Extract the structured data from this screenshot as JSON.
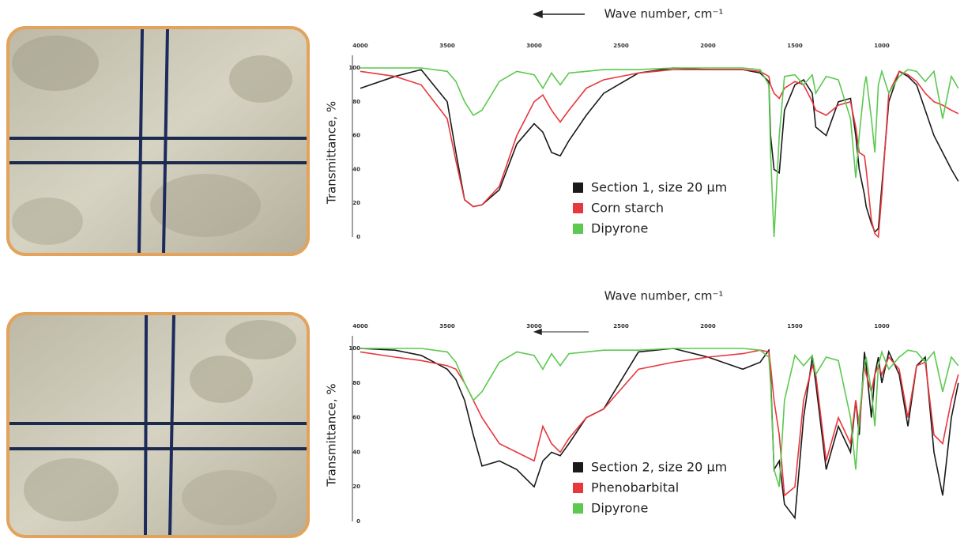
{
  "chart_data": [
    {
      "type": "line",
      "xlabel": "Wave number, cm⁻¹",
      "ylabel": "Transmittance, %",
      "x": [
        4000,
        3800,
        3650,
        3500,
        3450,
        3400,
        3350,
        3300,
        3200,
        3100,
        3000,
        2950,
        2900,
        2850,
        2800,
        2700,
        2600,
        2400,
        2200,
        2000,
        1800,
        1700,
        1650,
        1640,
        1620,
        1590,
        1560,
        1500,
        1450,
        1400,
        1380,
        1320,
        1250,
        1180,
        1150,
        1130,
        1100,
        1090,
        1060,
        1040,
        1020,
        1000,
        960,
        900,
        850,
        800,
        750,
        700,
        650,
        600,
        560
      ],
      "xlim": [
        4050,
        550
      ],
      "xticks": [
        4000,
        3500,
        3000,
        2500,
        2000,
        1500,
        1000
      ],
      "ylim": [
        0,
        100
      ],
      "yticks": [
        0,
        20,
        40,
        60,
        80,
        100
      ],
      "grid": false,
      "series": [
        {
          "name": "Section 1, size 20 µm",
          "color": "#1a1a1a",
          "values": [
            88,
            95,
            99,
            80,
            50,
            22,
            18,
            19,
            28,
            55,
            67,
            62,
            50,
            48,
            57,
            72,
            85,
            97,
            100,
            99,
            99,
            97,
            92,
            60,
            40,
            38,
            75,
            90,
            93,
            85,
            65,
            60,
            80,
            82,
            60,
            40,
            25,
            18,
            8,
            3,
            5,
            30,
            80,
            98,
            95,
            90,
            75,
            60,
            50,
            40,
            33
          ]
        },
        {
          "name": "Corn starch",
          "color": "#e8373d",
          "values": [
            98,
            95,
            90,
            70,
            45,
            22,
            18,
            19,
            30,
            60,
            80,
            84,
            75,
            68,
            75,
            88,
            93,
            97,
            99,
            99,
            99,
            98,
            95,
            90,
            85,
            82,
            88,
            92,
            90,
            80,
            75,
            72,
            78,
            80,
            65,
            50,
            48,
            40,
            10,
            2,
            0,
            25,
            85,
            98,
            96,
            92,
            85,
            80,
            78,
            75,
            73
          ]
        },
        {
          "name": "Dipyrone",
          "color": "#5cc94f",
          "values": [
            100,
            100,
            100,
            98,
            92,
            80,
            72,
            75,
            92,
            98,
            96,
            88,
            97,
            90,
            97,
            98,
            99,
            99,
            100,
            100,
            100,
            99,
            90,
            50,
            0,
            60,
            95,
            96,
            90,
            96,
            85,
            95,
            93,
            70,
            35,
            60,
            90,
            95,
            70,
            50,
            90,
            98,
            85,
            95,
            99,
            98,
            92,
            98,
            70,
            95,
            88
          ]
        }
      ]
    },
    {
      "type": "line",
      "xlabel": "Wave number, cm⁻¹",
      "ylabel": "Transmittance, %",
      "x": [
        4000,
        3800,
        3650,
        3500,
        3450,
        3400,
        3350,
        3300,
        3200,
        3100,
        3000,
        2950,
        2900,
        2850,
        2800,
        2700,
        2600,
        2400,
        2200,
        2000,
        1800,
        1700,
        1650,
        1640,
        1620,
        1590,
        1560,
        1500,
        1450,
        1400,
        1380,
        1320,
        1250,
        1180,
        1150,
        1130,
        1100,
        1090,
        1060,
        1040,
        1020,
        1000,
        960,
        900,
        850,
        800,
        750,
        700,
        650,
        600,
        560
      ],
      "xlim": [
        4050,
        550
      ],
      "xticks": [
        4000,
        3500,
        3000,
        2500,
        2000,
        1500,
        1000
      ],
      "ylim": [
        0,
        100
      ],
      "yticks": [
        0,
        20,
        40,
        60,
        80,
        100
      ],
      "grid": false,
      "series": [
        {
          "name": "Section 2, size 20 µm",
          "color": "#1a1a1a",
          "values": [
            100,
            99,
            96,
            88,
            82,
            70,
            50,
            32,
            35,
            30,
            20,
            35,
            40,
            38,
            45,
            60,
            65,
            98,
            100,
            95,
            88,
            92,
            99,
            85,
            30,
            35,
            10,
            2,
            60,
            95,
            80,
            30,
            55,
            40,
            70,
            50,
            98,
            90,
            60,
            85,
            95,
            80,
            98,
            85,
            55,
            90,
            95,
            40,
            15,
            60,
            80
          ]
        },
        {
          "name": "Phenobarbital",
          "color": "#e8373d",
          "values": [
            98,
            95,
            93,
            90,
            88,
            80,
            70,
            60,
            45,
            40,
            35,
            55,
            45,
            40,
            48,
            60,
            65,
            88,
            92,
            95,
            97,
            99,
            98,
            90,
            70,
            50,
            15,
            20,
            70,
            90,
            85,
            35,
            60,
            45,
            70,
            55,
            90,
            85,
            75,
            85,
            90,
            85,
            95,
            88,
            60,
            90,
            92,
            50,
            45,
            70,
            85
          ]
        },
        {
          "name": "Dipyrone",
          "color": "#5cc94f",
          "values": [
            100,
            100,
            100,
            98,
            92,
            80,
            70,
            75,
            92,
            98,
            96,
            88,
            97,
            90,
            97,
            98,
            99,
            99,
            100,
            100,
            100,
            99,
            95,
            80,
            30,
            20,
            70,
            96,
            90,
            96,
            85,
            95,
            93,
            60,
            30,
            60,
            90,
            95,
            75,
            55,
            90,
            98,
            88,
            95,
            99,
            98,
            92,
            98,
            75,
            95,
            90
          ]
        }
      ]
    }
  ]
}
